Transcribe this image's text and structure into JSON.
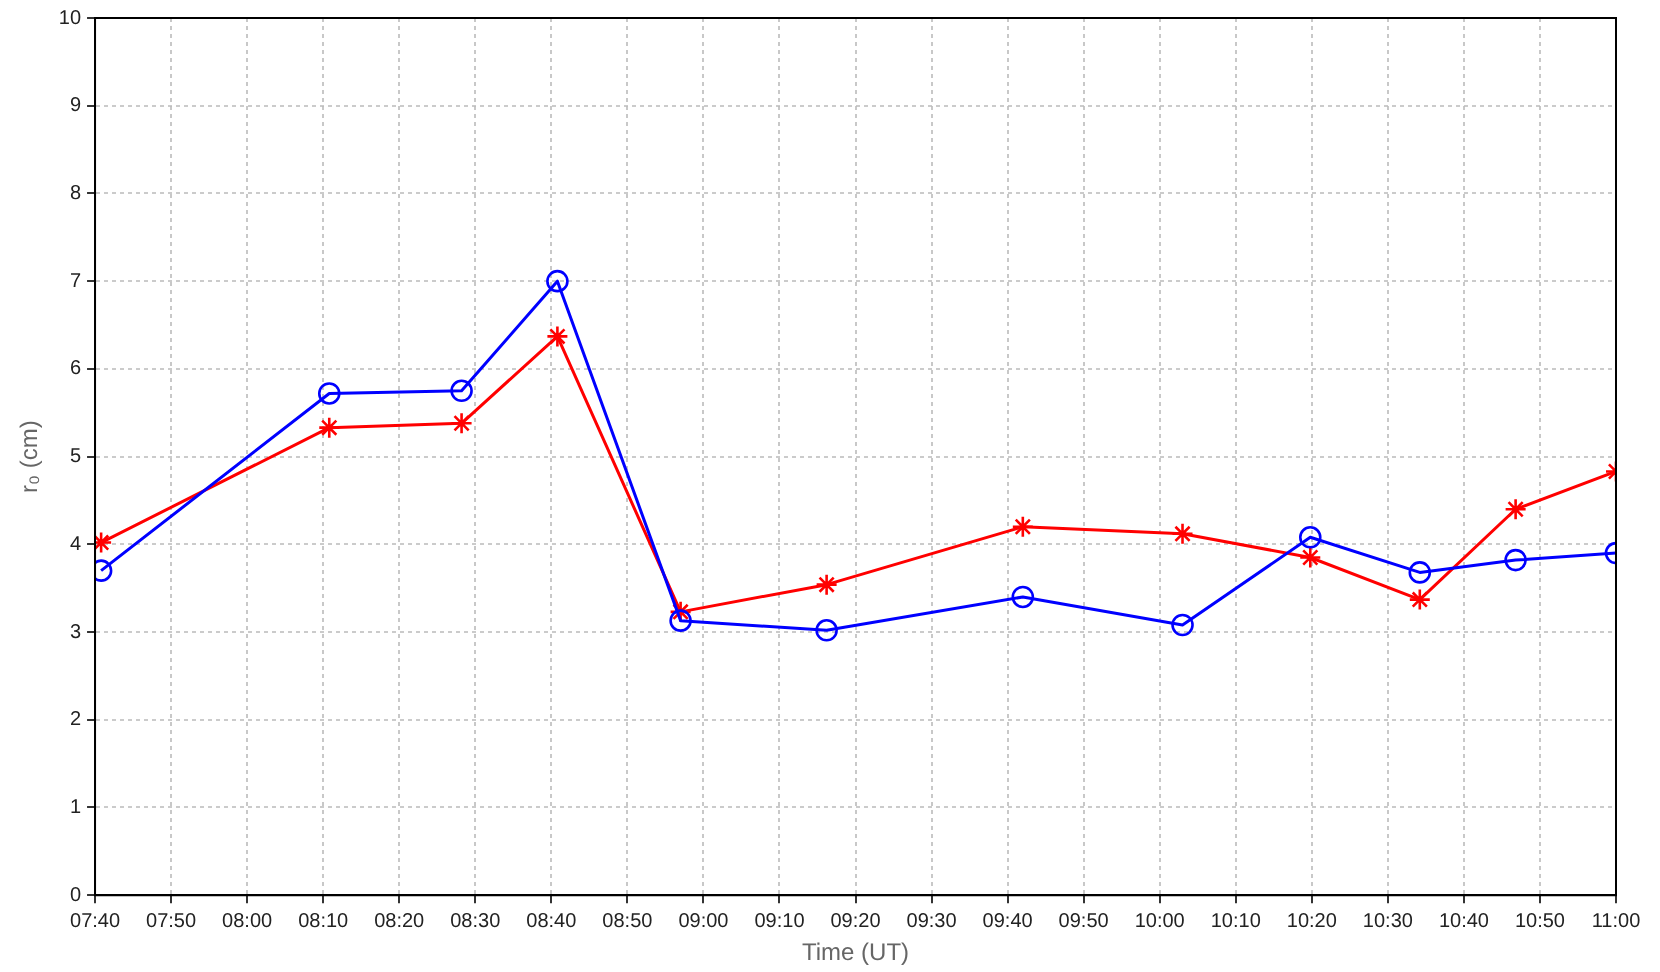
{
  "chart_data": {
    "type": "line",
    "xlabel": "Time (UT)",
    "ylabel": "r₀ (cm)",
    "x": [
      7.68,
      8.18,
      8.47,
      8.68,
      8.95,
      9.27,
      9.7,
      10.05,
      10.33,
      10.57,
      10.78,
      11
    ],
    "series": [
      {
        "color": "#0000ff",
        "marker": "circle",
        "values": [
          3.7,
          5.72,
          5.75,
          7.0,
          3.13,
          3.02,
          3.4,
          3.08,
          4.08,
          3.68,
          3.82,
          3.9
        ]
      },
      {
        "color": "#ff0000",
        "marker": "cross",
        "values": [
          4.02,
          5.33,
          5.38,
          6.37,
          3.23,
          3.54,
          4.2,
          4.12,
          3.85,
          3.37,
          4.4,
          4.83
        ]
      }
    ],
    "xlim": [
      7.6667,
      11
    ],
    "xticks": [
      {
        "value": 7.6667,
        "label": "07:40"
      },
      {
        "value": 7.8333,
        "label": "07:50"
      },
      {
        "value": 8,
        "label": "08:00"
      },
      {
        "value": 8.1667,
        "label": "08:10"
      },
      {
        "value": 8.3333,
        "label": "08:20"
      },
      {
        "value": 8.5,
        "label": "08:30"
      },
      {
        "value": 8.6667,
        "label": "08:40"
      },
      {
        "value": 8.8333,
        "label": "08:50"
      },
      {
        "value": 9,
        "label": "09:00"
      },
      {
        "value": 9.1667,
        "label": "09:10"
      },
      {
        "value": 9.3333,
        "label": "09:20"
      },
      {
        "value": 9.5,
        "label": "09:30"
      },
      {
        "value": 9.6667,
        "label": "09:40"
      },
      {
        "value": 9.8333,
        "label": "09:50"
      },
      {
        "value": 10,
        "label": "10:00"
      },
      {
        "value": 10.1667,
        "label": "10:10"
      },
      {
        "value": 10.3333,
        "label": "10:20"
      },
      {
        "value": 10.5,
        "label": "10:30"
      },
      {
        "value": 10.6667,
        "label": "10:40"
      },
      {
        "value": 10.8333,
        "label": "10:50"
      },
      {
        "value": 11,
        "label": "11:00"
      }
    ],
    "ylim": [
      0,
      10
    ],
    "yticks": [
      0,
      1,
      2,
      3,
      4,
      5,
      6,
      7,
      8,
      9,
      10
    ],
    "grid": true,
    "line_style": "solid"
  }
}
